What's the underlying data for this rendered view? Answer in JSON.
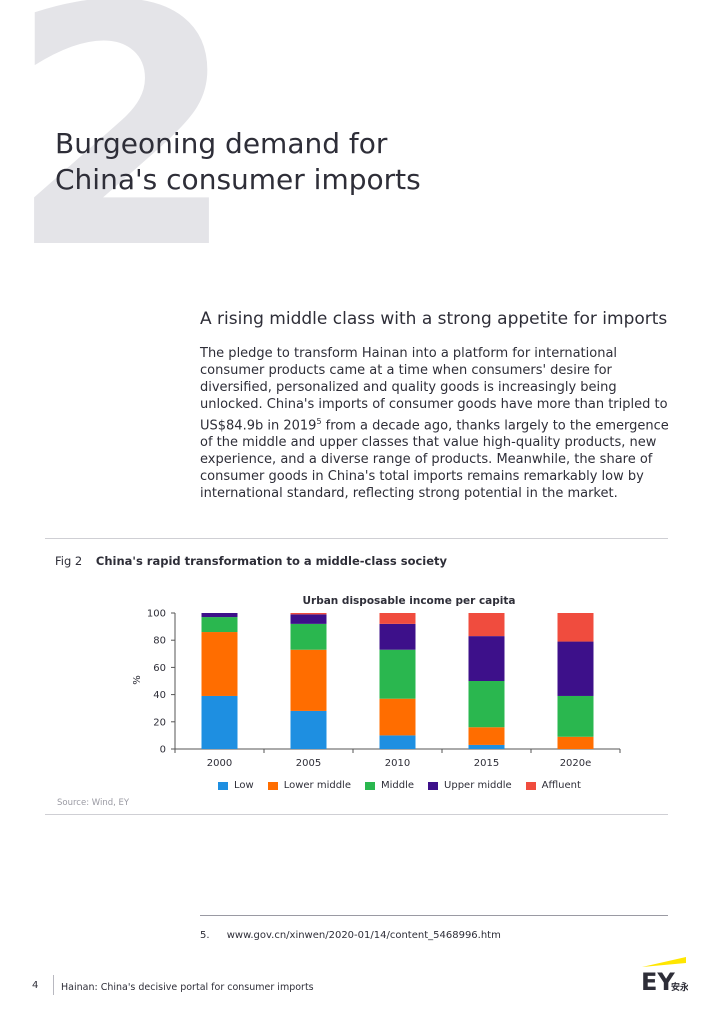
{
  "section": {
    "number": "2",
    "title_lines": [
      "Burgeoning demand for",
      "China's consumer imports"
    ]
  },
  "article": {
    "subtitle": "A rising middle class with a strong appetite for imports",
    "body_before_sup": "The pledge to transform Hainan into a platform for international consumer products came at a time when consumers' desire for diversified, personalized and quality goods is increasingly being unlocked. China's imports of consumer goods have more than tripled to US$84.9b in 2019",
    "body_sup": "5",
    "body_after_sup": " from a decade ago, thanks largely to the emergence of the middle and upper classes that value high-quality products, new experience, and a diverse range of products. Meanwhile, the share of consumer goods in China's total imports remains remarkably low by international standard, reflecting strong potential in the market."
  },
  "figure": {
    "label": "Fig 2",
    "title": "China's rapid transformation to a middle-class society",
    "source": "Source: Wind, EY"
  },
  "chart_data": {
    "type": "bar",
    "stacked": true,
    "title": "Urban disposable income per capita",
    "ylabel": "%",
    "xlabel": "",
    "ylim": [
      0,
      100
    ],
    "yticks": [
      0,
      20,
      40,
      60,
      80,
      100
    ],
    "categories": [
      "2000",
      "2005",
      "2010",
      "2015",
      "2020e"
    ],
    "series": [
      {
        "name": "Low",
        "color": "#1e8fe1",
        "values": [
          39,
          28,
          10,
          3,
          0
        ]
      },
      {
        "name": "Lower middle",
        "color": "#ff6d00",
        "values": [
          47,
          45,
          27,
          13,
          9
        ]
      },
      {
        "name": "Middle",
        "color": "#2ab74f",
        "values": [
          11,
          19,
          36,
          34,
          30
        ]
      },
      {
        "name": "Upper middle",
        "color": "#3d108a",
        "values": [
          3,
          7,
          19,
          33,
          40
        ]
      },
      {
        "name": "Affluent",
        "color": "#f04c3e",
        "values": [
          0,
          1,
          8,
          17,
          21
        ]
      }
    ],
    "grid": false,
    "legend_position": "bottom"
  },
  "footnote": {
    "number": "5.",
    "text": "www.gov.cn/xinwen/2020-01/14/content_5468996.htm"
  },
  "footer": {
    "page_number": "4",
    "running_title": "Hainan: China's decisive portal for consumer imports"
  },
  "logo": {
    "text": "EY",
    "chinese": "安永",
    "accent_color": "#ffe600"
  }
}
